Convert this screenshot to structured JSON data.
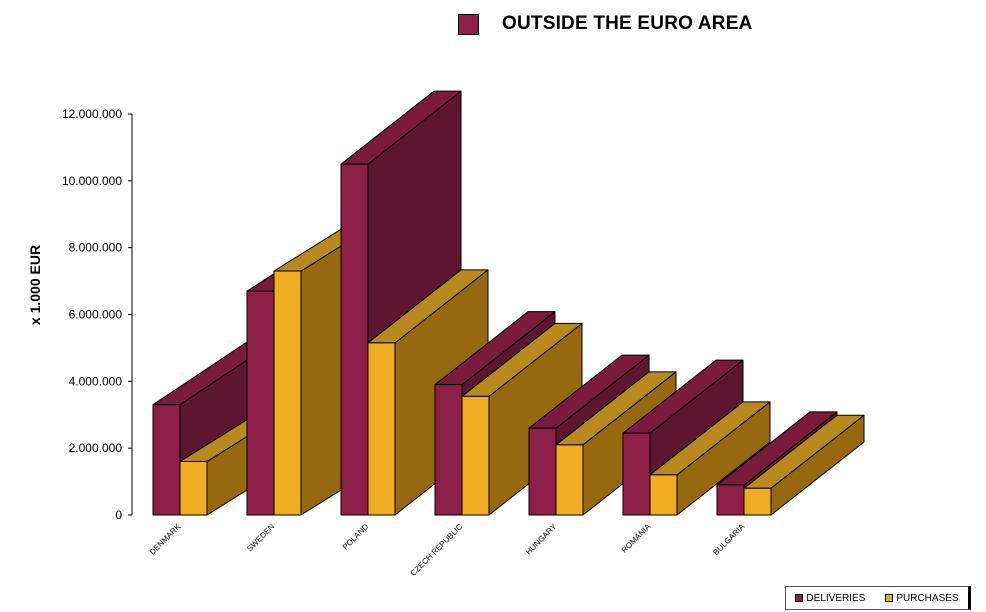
{
  "chart_data": {
    "type": "bar",
    "title": "OUTSIDE THE EURO AREA",
    "ylabel": "x 1.000 EUR",
    "ylim": [
      0,
      12000000
    ],
    "yticks": [
      0,
      2000000,
      4000000,
      6000000,
      8000000,
      10000000,
      12000000
    ],
    "ytick_labels": [
      "0",
      "2.000.000",
      "4.000.000",
      "6.000.000",
      "8.000.000",
      "10.000.000",
      "12.000.000"
    ],
    "categories": [
      "DENMARK",
      "SWEDEN",
      "POLAND",
      "CZECH REPUBLIC",
      "HUNGARY",
      "ROMANIA",
      "BULGARIA"
    ],
    "series": [
      {
        "name": "DELIVERIES",
        "values": [
          3300000,
          6700000,
          10500000,
          3900000,
          2600000,
          2450000,
          900000
        ]
      },
      {
        "name": "PURCHASES",
        "values": [
          1600000,
          7300000,
          5150000,
          3550000,
          2100000,
          1200000,
          800000
        ]
      }
    ],
    "grid": false,
    "legend": "bottom-right"
  },
  "colors": {
    "deliveries": "#8c2048",
    "purchases": "#f0ac22",
    "deliveries_side": "#5e1530",
    "deliveries_top": "#7a1a3c",
    "purchases_side": "#966910",
    "purchases_top": "#b88a1e"
  }
}
